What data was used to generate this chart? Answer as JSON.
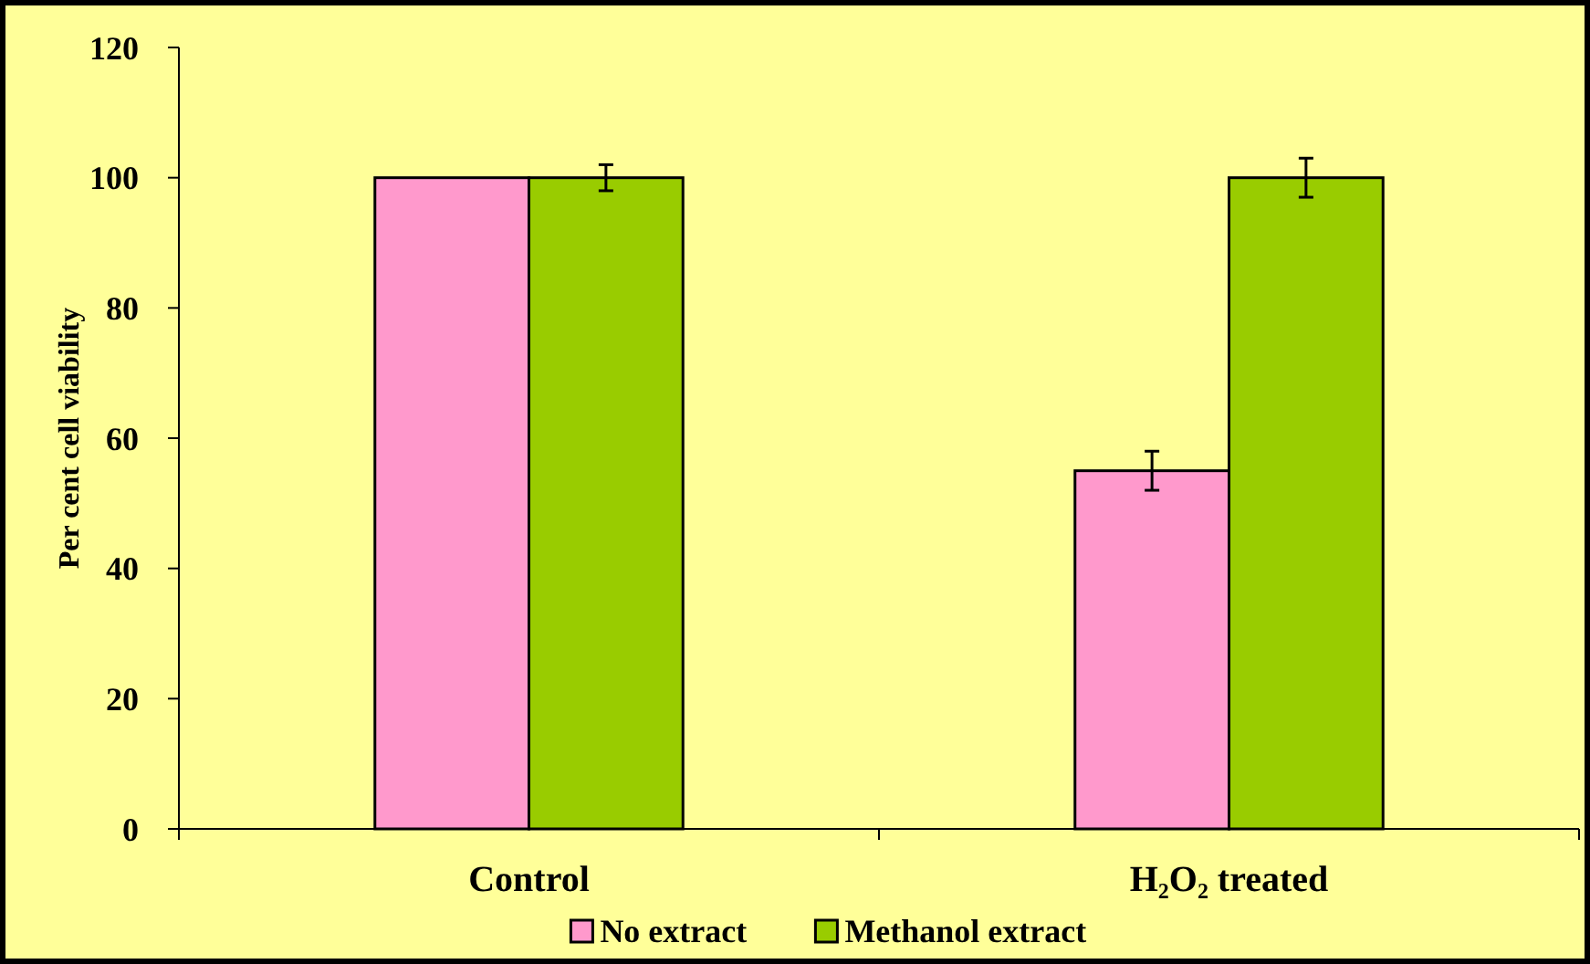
{
  "chart_data": {
    "type": "bar",
    "ylabel": "Per cent cell viability",
    "categories": [
      "Control",
      "H₂O₂ treated"
    ],
    "series": [
      {
        "name": "No extract",
        "color": "#ff99cc",
        "values": [
          100,
          55
        ],
        "errors": [
          null,
          3
        ]
      },
      {
        "name": "Methanol extract",
        "color": "#99cc00",
        "values": [
          100,
          100
        ],
        "errors": [
          2,
          3
        ]
      }
    ],
    "ylim": [
      0,
      120
    ],
    "yticks": [
      0,
      20,
      40,
      60,
      80,
      100,
      120
    ],
    "grid": false,
    "legend": "bottom"
  }
}
